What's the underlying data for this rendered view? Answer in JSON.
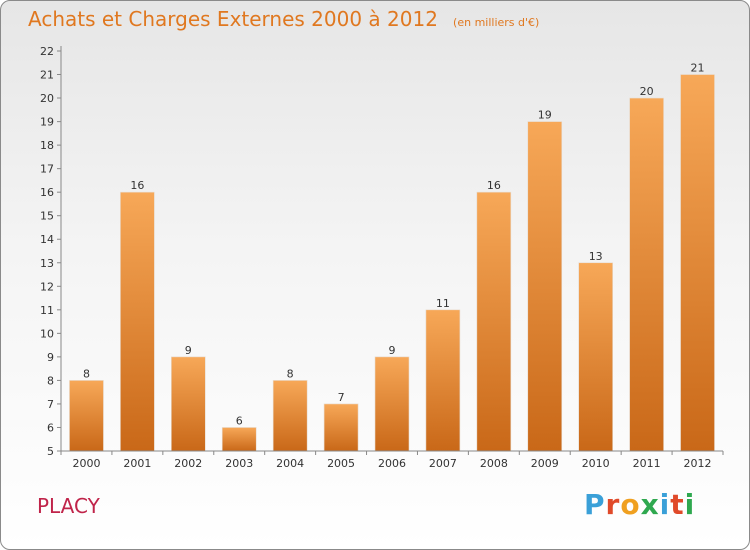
{
  "header": {
    "title": "Achats et Charges Externes 2000 à 2012",
    "subtitle": "(en milliers d'€)"
  },
  "footer": {
    "place": "PLACY",
    "brand": "Proxiti",
    "brand_colors": [
      "#3aa0d8",
      "#e04a2a",
      "#f0a020",
      "#2fa84f",
      "#3aa0d8",
      "#e04a2a",
      "#2fa84f"
    ]
  },
  "colors": {
    "title": "#e07820",
    "place": "#c0244a",
    "bar_light": "#f7a858",
    "bar_dark": "#c96818"
  },
  "chart_data": {
    "type": "bar",
    "title": "Achats et Charges Externes 2000 à 2012",
    "subtitle": "(en milliers d'€)",
    "categories": [
      "2000",
      "2001",
      "2002",
      "2003",
      "2004",
      "2005",
      "2006",
      "2007",
      "2008",
      "2009",
      "2010",
      "2011",
      "2012"
    ],
    "values": [
      8,
      16,
      9,
      6,
      8,
      7,
      9,
      11,
      16,
      19,
      13,
      20,
      21
    ],
    "ylim": [
      5,
      22
    ],
    "yticks": [
      5,
      6,
      7,
      8,
      9,
      10,
      11,
      12,
      13,
      14,
      15,
      16,
      17,
      18,
      19,
      20,
      21,
      22
    ],
    "grid": false,
    "data_labels": true,
    "legend": "none"
  }
}
